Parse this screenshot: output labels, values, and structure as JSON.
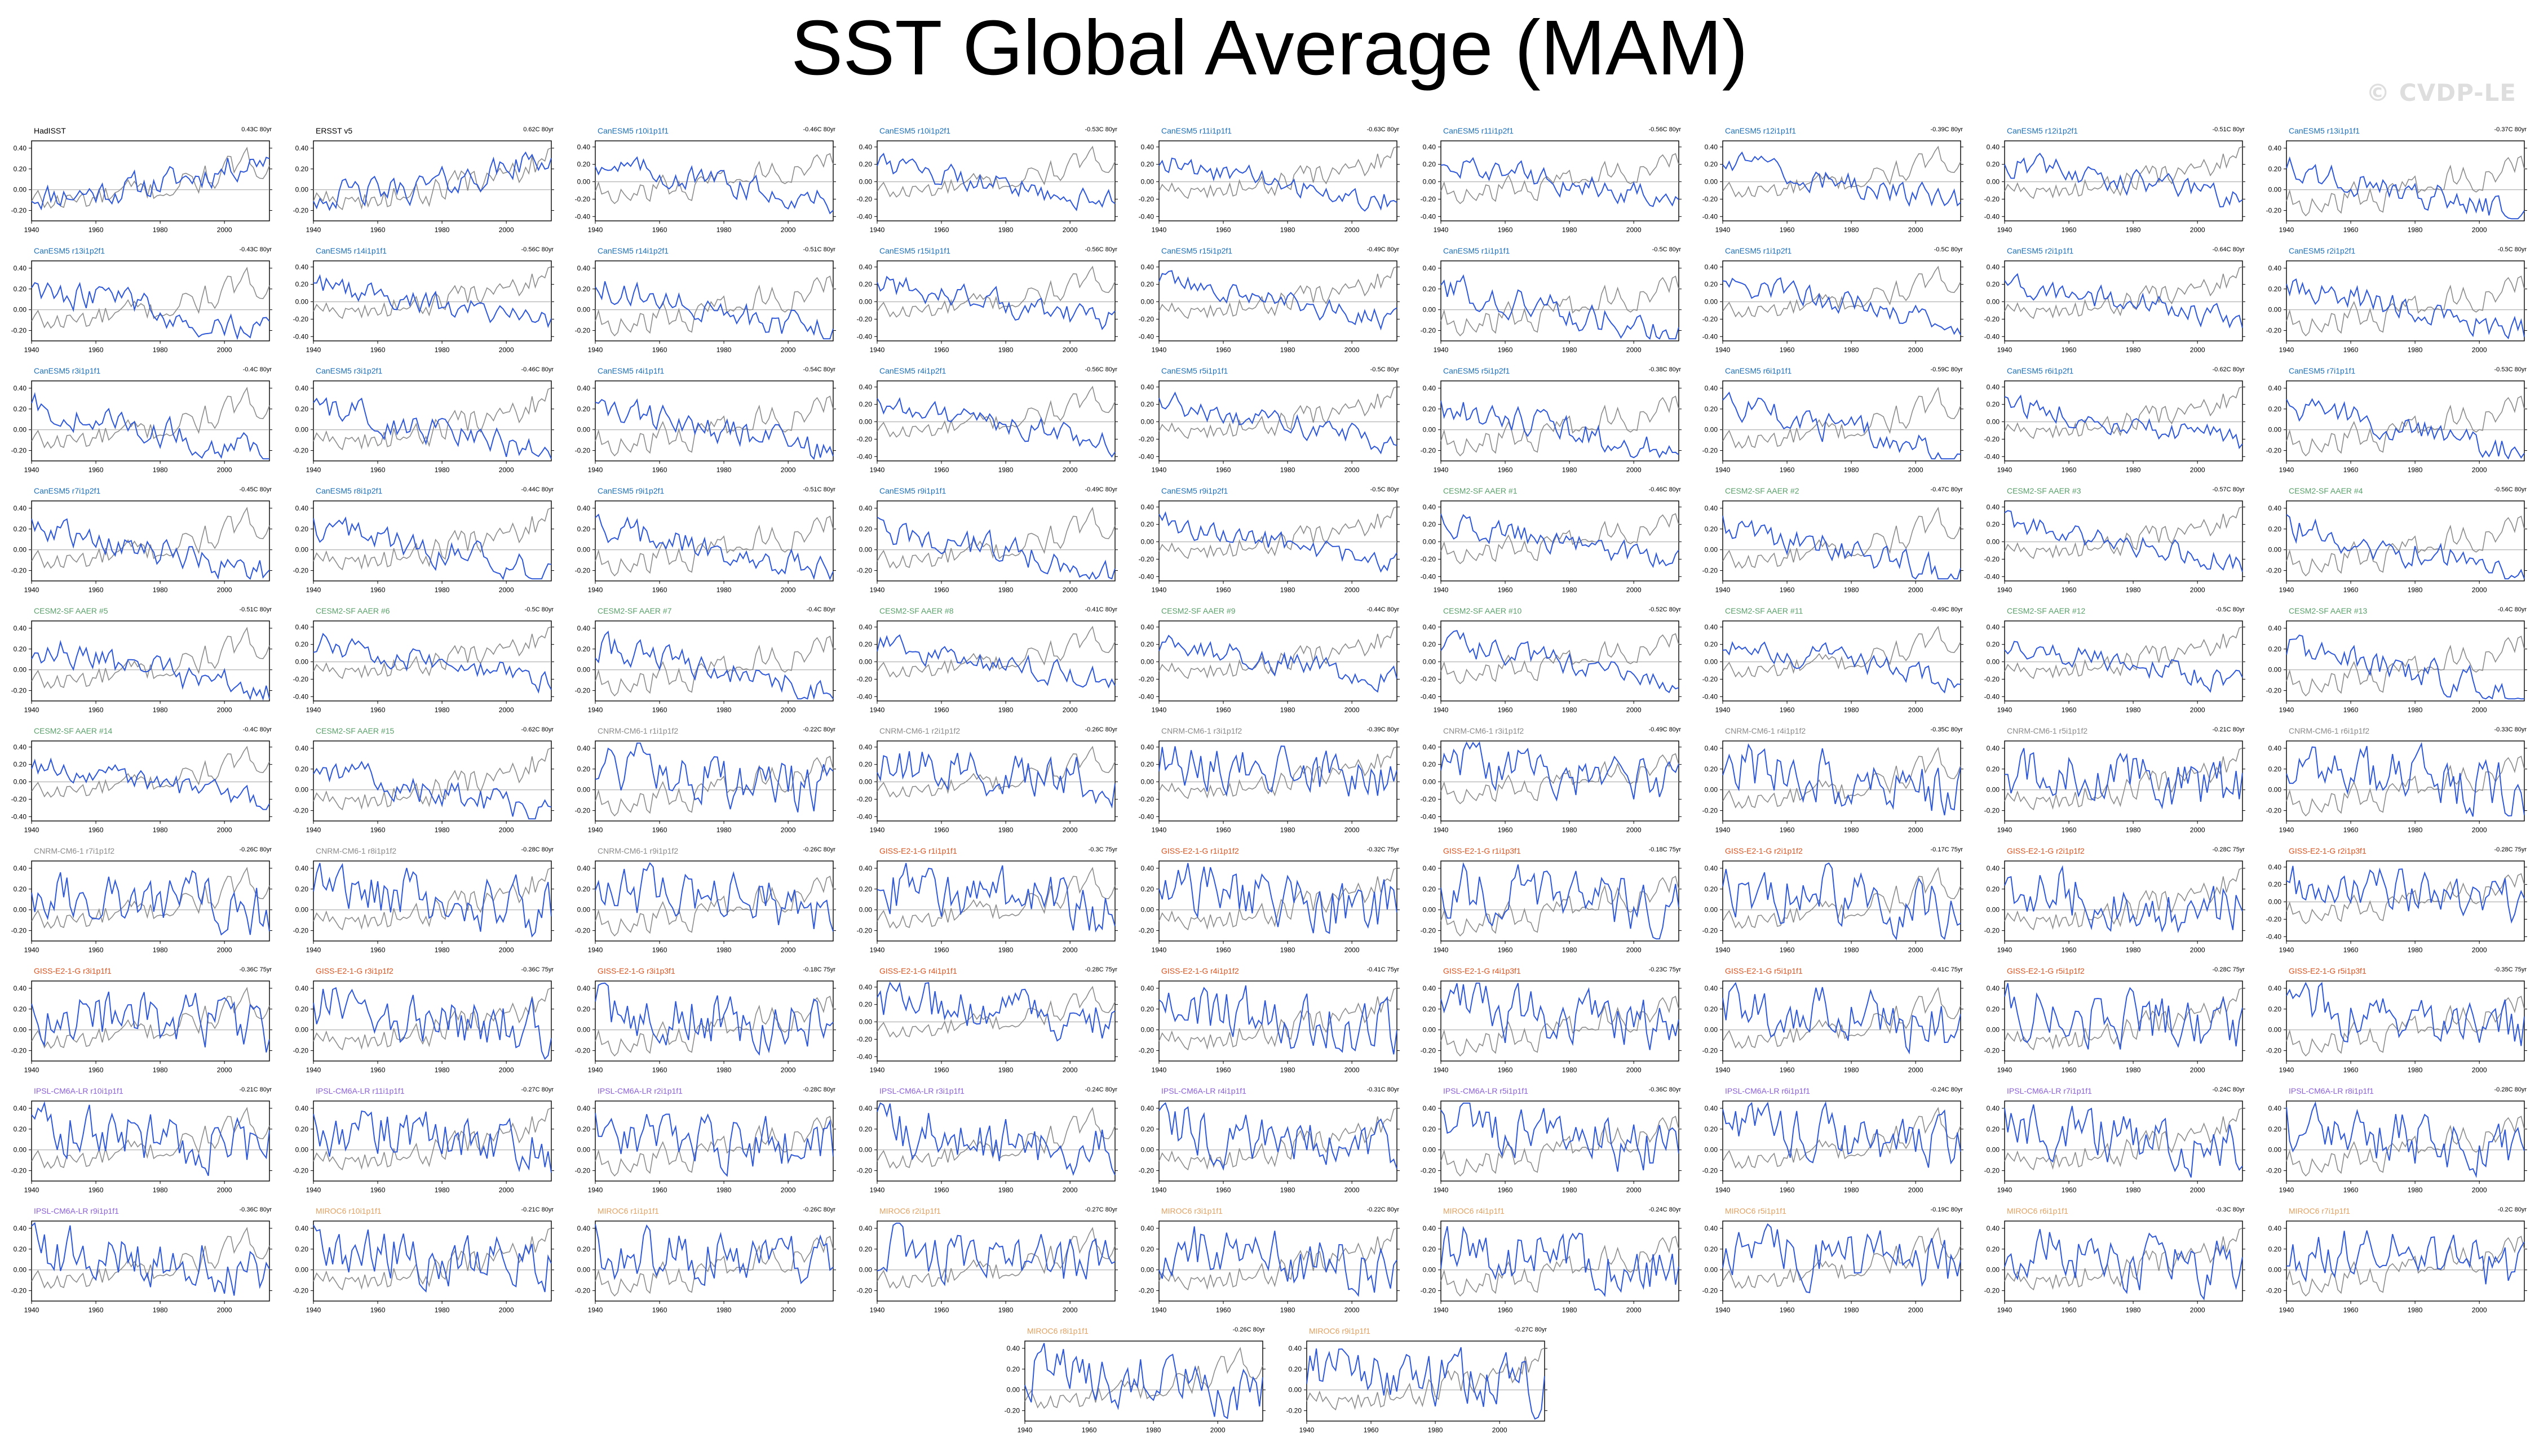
{
  "title": "SST Global Average (MAM)",
  "watermark": "© CVDP-LE",
  "colors": {
    "ensemble_line": "#2f58d6",
    "observed_line": "#8c8c8c",
    "zero_line": "#aaaaaa",
    "observations_label": "#000000",
    "CanESM5": "#1d6fb8",
    "CESM2-SF AAER": "#5aa06a",
    "CNRM-CM6-1": "#8a8a8a",
    "GISS-E2-1-G": "#d8531f",
    "IPSL-CM6A-LR": "#8a5fd6",
    "MIROC6": "#e0a060"
  },
  "x_ticks": [
    "1940",
    "1960",
    "1980",
    "2000"
  ],
  "y_ticks_a": [
    "0.40",
    "0.20",
    "0.00",
    "-0.20"
  ],
  "y_ticks_b": [
    "0.40",
    "0.20",
    "0.00",
    "-0.20",
    "-0.40"
  ],
  "chart_data": {
    "type": "line",
    "figure_title": "SST Global Average (MAM)",
    "x_range": [
      1940,
      2014
    ],
    "ylim": [
      -0.4,
      0.45
    ],
    "grid": false,
    "panels": [
      {
        "label": "HadISST",
        "group": "obs",
        "trend": "0.43C 80yr",
        "ylim": "a"
      },
      {
        "label": "ERSST v5",
        "group": "obs",
        "trend": "0.62C 80yr",
        "ylim": "a"
      },
      {
        "label": "CanESM5 r10i1p1f1",
        "group": "CanESM5",
        "trend": "-0.46C 80yr",
        "ylim": "b"
      },
      {
        "label": "CanESM5 r10i1p2f1",
        "group": "CanESM5",
        "trend": "-0.53C 80yr",
        "ylim": "b"
      },
      {
        "label": "CanESM5 r11i1p1f1",
        "group": "CanESM5",
        "trend": "-0.63C 80yr",
        "ylim": "b"
      },
      {
        "label": "CanESM5 r11i1p2f1",
        "group": "CanESM5",
        "trend": "-0.56C 80yr",
        "ylim": "b"
      },
      {
        "label": "CanESM5 r12i1p1f1",
        "group": "CanESM5",
        "trend": "-0.39C 80yr",
        "ylim": "b"
      },
      {
        "label": "CanESM5 r12i1p2f1",
        "group": "CanESM5",
        "trend": "-0.51C 80yr",
        "ylim": "b"
      },
      {
        "label": "CanESM5 r13i1p1f1",
        "group": "CanESM5",
        "trend": "-0.37C 80yr",
        "ylim": "a"
      },
      {
        "label": "CanESM5 r13i1p2f1",
        "group": "CanESM5",
        "trend": "-0.43C 80yr",
        "ylim": "a"
      },
      {
        "label": "CanESM5 r14i1p1f1",
        "group": "CanESM5",
        "trend": "-0.56C 80yr",
        "ylim": "b"
      },
      {
        "label": "CanESM5 r14i1p2f1",
        "group": "CanESM5",
        "trend": "-0.51C 80yr",
        "ylim": "a"
      },
      {
        "label": "CanESM5 r15i1p1f1",
        "group": "CanESM5",
        "trend": "-0.56C 80yr",
        "ylim": "b"
      },
      {
        "label": "CanESM5 r15i1p2f1",
        "group": "CanESM5",
        "trend": "-0.49C 80yr",
        "ylim": "b"
      },
      {
        "label": "CanESM5 r1i1p1f1",
        "group": "CanESM5",
        "trend": "-0.5C 80yr",
        "ylim": "a"
      },
      {
        "label": "CanESM5 r1i1p2f1",
        "group": "CanESM5",
        "trend": "-0.5C 80yr",
        "ylim": "b"
      },
      {
        "label": "CanESM5 r2i1p1f1",
        "group": "CanESM5",
        "trend": "-0.64C 80yr",
        "ylim": "b"
      },
      {
        "label": "CanESM5 r2i1p2f1",
        "group": "CanESM5",
        "trend": "-0.5C 80yr",
        "ylim": "a"
      },
      {
        "label": "CanESM5 r3i1p1f1",
        "group": "CanESM5",
        "trend": "-0.4C 80yr",
        "ylim": "a"
      },
      {
        "label": "CanESM5 r3i1p2f1",
        "group": "CanESM5",
        "trend": "-0.46C 80yr",
        "ylim": "a"
      },
      {
        "label": "CanESM5 r4i1p1f1",
        "group": "CanESM5",
        "trend": "-0.54C 80yr",
        "ylim": "a"
      },
      {
        "label": "CanESM5 r4i1p2f1",
        "group": "CanESM5",
        "trend": "-0.56C 80yr",
        "ylim": "b"
      },
      {
        "label": "CanESM5 r5i1p1f1",
        "group": "CanESM5",
        "trend": "-0.5C 80yr",
        "ylim": "b"
      },
      {
        "label": "CanESM5 r5i1p2f1",
        "group": "CanESM5",
        "trend": "-0.38C 80yr",
        "ylim": "a"
      },
      {
        "label": "CanESM5 r6i1p1f1",
        "group": "CanESM5",
        "trend": "-0.59C 80yr",
        "ylim": "a"
      },
      {
        "label": "CanESM5 r6i1p2f1",
        "group": "CanESM5",
        "trend": "-0.62C 80yr",
        "ylim": "b"
      },
      {
        "label": "CanESM5 r7i1p1f1",
        "group": "CanESM5",
        "trend": "-0.53C 80yr",
        "ylim": "a"
      },
      {
        "label": "CanESM5 r7i1p2f1",
        "group": "CanESM5",
        "trend": "-0.45C 80yr",
        "ylim": "a"
      },
      {
        "label": "CanESM5 r8i1p2f1",
        "group": "CanESM5",
        "trend": "-0.44C 80yr",
        "ylim": "a"
      },
      {
        "label": "CanESM5 r9i1p2f1",
        "group": "CanESM5",
        "trend": "-0.51C 80yr",
        "ylim": "a"
      },
      {
        "label": "CanESM5 r9i1p1f1",
        "group": "CanESM5",
        "trend": "-0.49C 80yr",
        "ylim": "a"
      },
      {
        "label": "CanESM5 r9i1p2f1",
        "group": "CanESM5",
        "trend": "-0.5C 80yr",
        "ylim": "b"
      },
      {
        "label": "CESM2-SF AAER #1",
        "group": "CESM2-SF AAER",
        "trend": "-0.46C 80yr",
        "ylim": "b"
      },
      {
        "label": "CESM2-SF AAER #2",
        "group": "CESM2-SF AAER",
        "trend": "-0.47C 80yr",
        "ylim": "a"
      },
      {
        "label": "CESM2-SF AAER #3",
        "group": "CESM2-SF AAER",
        "trend": "-0.57C 80yr",
        "ylim": "b"
      },
      {
        "label": "CESM2-SF AAER #4",
        "group": "CESM2-SF AAER",
        "trend": "-0.56C 80yr",
        "ylim": "a"
      },
      {
        "label": "CESM2-SF AAER #5",
        "group": "CESM2-SF AAER",
        "trend": "-0.51C 80yr",
        "ylim": "a"
      },
      {
        "label": "CESM2-SF AAER #6",
        "group": "CESM2-SF AAER",
        "trend": "-0.5C 80yr",
        "ylim": "b"
      },
      {
        "label": "CESM2-SF AAER #7",
        "group": "CESM2-SF AAER",
        "trend": "-0.4C 80yr",
        "ylim": "a"
      },
      {
        "label": "CESM2-SF AAER #8",
        "group": "CESM2-SF AAER",
        "trend": "-0.41C 80yr",
        "ylim": "b"
      },
      {
        "label": "CESM2-SF AAER #9",
        "group": "CESM2-SF AAER",
        "trend": "-0.44C 80yr",
        "ylim": "b"
      },
      {
        "label": "CESM2-SF AAER #10",
        "group": "CESM2-SF AAER",
        "trend": "-0.52C 80yr",
        "ylim": "b"
      },
      {
        "label": "CESM2-SF AAER #11",
        "group": "CESM2-SF AAER",
        "trend": "-0.49C 80yr",
        "ylim": "b"
      },
      {
        "label": "CESM2-SF AAER #12",
        "group": "CESM2-SF AAER",
        "trend": "-0.5C 80yr",
        "ylim": "b"
      },
      {
        "label": "CESM2-SF AAER #13",
        "group": "CESM2-SF AAER",
        "trend": "-0.4C 80yr",
        "ylim": "a"
      },
      {
        "label": "CESM2-SF AAER #14",
        "group": "CESM2-SF AAER",
        "trend": "-0.4C 80yr",
        "ylim": "b"
      },
      {
        "label": "CESM2-SF AAER #15",
        "group": "CESM2-SF AAER",
        "trend": "-0.62C 80yr",
        "ylim": "a"
      },
      {
        "label": "CNRM-CM6-1 r1i1p1f2",
        "group": "CNRM-CM6-1",
        "trend": "-0.22C 80yr",
        "ylim": "a"
      },
      {
        "label": "CNRM-CM6-1 r2i1p1f2",
        "group": "CNRM-CM6-1",
        "trend": "-0.26C 80yr",
        "ylim": "b"
      },
      {
        "label": "CNRM-CM6-1 r3i1p1f2",
        "group": "CNRM-CM6-1",
        "trend": "-0.39C 80yr",
        "ylim": "b"
      },
      {
        "label": "CNRM-CM6-1 r3i1p1f2",
        "group": "CNRM-CM6-1",
        "trend": "-0.49C 80yr",
        "ylim": "b"
      },
      {
        "label": "CNRM-CM6-1 r4i1p1f2",
        "group": "CNRM-CM6-1",
        "trend": "-0.35C 80yr",
        "ylim": "a"
      },
      {
        "label": "CNRM-CM6-1 r5i1p1f2",
        "group": "CNRM-CM6-1",
        "trend": "-0.21C 80yr",
        "ylim": "a"
      },
      {
        "label": "CNRM-CM6-1 r6i1p1f2",
        "group": "CNRM-CM6-1",
        "trend": "-0.33C 80yr",
        "ylim": "a"
      },
      {
        "label": "CNRM-CM6-1 r7i1p1f2",
        "group": "CNRM-CM6-1",
        "trend": "-0.26C 80yr",
        "ylim": "a"
      },
      {
        "label": "CNRM-CM6-1 r8i1p1f2",
        "group": "CNRM-CM6-1",
        "trend": "-0.28C 80yr",
        "ylim": "a"
      },
      {
        "label": "CNRM-CM6-1 r9i1p1f2",
        "group": "CNRM-CM6-1",
        "trend": "-0.26C 80yr",
        "ylim": "a"
      },
      {
        "label": "GISS-E2-1-G r1i1p1f1",
        "group": "GISS-E2-1-G",
        "trend": "-0.3C 75yr",
        "ylim": "a"
      },
      {
        "label": "GISS-E2-1-G r1i1p1f2",
        "group": "GISS-E2-1-G",
        "trend": "-0.32C 75yr",
        "ylim": "a"
      },
      {
        "label": "GISS-E2-1-G r1i1p3f1",
        "group": "GISS-E2-1-G",
        "trend": "-0.18C 75yr",
        "ylim": "a"
      },
      {
        "label": "GISS-E2-1-G r2i1p1f2",
        "group": "GISS-E2-1-G",
        "trend": "-0.17C 75yr",
        "ylim": "a"
      },
      {
        "label": "GISS-E2-1-G r2i1p1f2",
        "group": "GISS-E2-1-G",
        "trend": "-0.28C 75yr",
        "ylim": "a"
      },
      {
        "label": "GISS-E2-1-G r2i1p3f1",
        "group": "GISS-E2-1-G",
        "trend": "-0.28C 75yr",
        "ylim": "b"
      },
      {
        "label": "GISS-E2-1-G r3i1p1f1",
        "group": "GISS-E2-1-G",
        "trend": "-0.36C 75yr",
        "ylim": "a"
      },
      {
        "label": "GISS-E2-1-G r3i1p1f2",
        "group": "GISS-E2-1-G",
        "trend": "-0.36C 75yr",
        "ylim": "a"
      },
      {
        "label": "GISS-E2-1-G r3i1p3f1",
        "group": "GISS-E2-1-G",
        "trend": "-0.18C 75yr",
        "ylim": "a"
      },
      {
        "label": "GISS-E2-1-G r4i1p1f1",
        "group": "GISS-E2-1-G",
        "trend": "-0.28C 75yr",
        "ylim": "b"
      },
      {
        "label": "GISS-E2-1-G r4i1p1f2",
        "group": "GISS-E2-1-G",
        "trend": "-0.41C 75yr",
        "ylim": "a"
      },
      {
        "label": "GISS-E2-1-G r4i1p3f1",
        "group": "GISS-E2-1-G",
        "trend": "-0.23C 75yr",
        "ylim": "a"
      },
      {
        "label": "GISS-E2-1-G r5i1p1f1",
        "group": "GISS-E2-1-G",
        "trend": "-0.41C 75yr",
        "ylim": "a"
      },
      {
        "label": "GISS-E2-1-G r5i1p1f2",
        "group": "GISS-E2-1-G",
        "trend": "-0.28C 75yr",
        "ylim": "a"
      },
      {
        "label": "GISS-E2-1-G r5i1p3f1",
        "group": "GISS-E2-1-G",
        "trend": "-0.35C 75yr",
        "ylim": "a"
      },
      {
        "label": "IPSL-CM6A-LR r10i1p1f1",
        "group": "IPSL-CM6A-LR",
        "trend": "-0.21C 80yr",
        "ylim": "a"
      },
      {
        "label": "IPSL-CM6A-LR r11i1p1f1",
        "group": "IPSL-CM6A-LR",
        "trend": "-0.27C 80yr",
        "ylim": "a"
      },
      {
        "label": "IPSL-CM6A-LR r2i1p1f1",
        "group": "IPSL-CM6A-LR",
        "trend": "-0.28C 80yr",
        "ylim": "a"
      },
      {
        "label": "IPSL-CM6A-LR r3i1p1f1",
        "group": "IPSL-CM6A-LR",
        "trend": "-0.24C 80yr",
        "ylim": "a"
      },
      {
        "label": "IPSL-CM6A-LR r4i1p1f1",
        "group": "IPSL-CM6A-LR",
        "trend": "-0.31C 80yr",
        "ylim": "a"
      },
      {
        "label": "IPSL-CM6A-LR r5i1p1f1",
        "group": "IPSL-CM6A-LR",
        "trend": "-0.36C 80yr",
        "ylim": "a"
      },
      {
        "label": "IPSL-CM6A-LR r6i1p1f1",
        "group": "IPSL-CM6A-LR",
        "trend": "-0.24C 80yr",
        "ylim": "a"
      },
      {
        "label": "IPSL-CM6A-LR r7i1p1f1",
        "group": "IPSL-CM6A-LR",
        "trend": "-0.24C 80yr",
        "ylim": "a"
      },
      {
        "label": "IPSL-CM6A-LR r8i1p1f1",
        "group": "IPSL-CM6A-LR",
        "trend": "-0.28C 80yr",
        "ylim": "a"
      },
      {
        "label": "IPSL-CM6A-LR r9i1p1f1",
        "group": "IPSL-CM6A-LR",
        "trend": "-0.36C 80yr",
        "ylim": "a"
      },
      {
        "label": "MIROC6 r10i1p1f1",
        "group": "MIROC6",
        "trend": "-0.21C 80yr",
        "ylim": "a"
      },
      {
        "label": "MIROC6 r1i1p1f1",
        "group": "MIROC6",
        "trend": "-0.26C 80yr",
        "ylim": "a"
      },
      {
        "label": "MIROC6 r2i1p1f1",
        "group": "MIROC6",
        "trend": "-0.27C 80yr",
        "ylim": "a"
      },
      {
        "label": "MIROC6 r3i1p1f1",
        "group": "MIROC6",
        "trend": "-0.22C 80yr",
        "ylim": "a"
      },
      {
        "label": "MIROC6 r4i1p1f1",
        "group": "MIROC6",
        "trend": "-0.24C 80yr",
        "ylim": "a"
      },
      {
        "label": "MIROC6 r5i1p1f1",
        "group": "MIROC6",
        "trend": "-0.19C 80yr",
        "ylim": "a"
      },
      {
        "label": "MIROC6 r6i1p1f1",
        "group": "MIROC6",
        "trend": "-0.3C 80yr",
        "ylim": "a"
      },
      {
        "label": "MIROC6 r7i1p1f1",
        "group": "MIROC6",
        "trend": "-0.2C 80yr",
        "ylim": "a"
      },
      {
        "label": "MIROC6 r8i1p1f1",
        "group": "MIROC6",
        "trend": "-0.26C 80yr",
        "ylim": "a"
      },
      {
        "label": "MIROC6 r9i1p1f1",
        "group": "MIROC6",
        "trend": "-0.27C 80yr",
        "ylim": "a"
      }
    ]
  }
}
